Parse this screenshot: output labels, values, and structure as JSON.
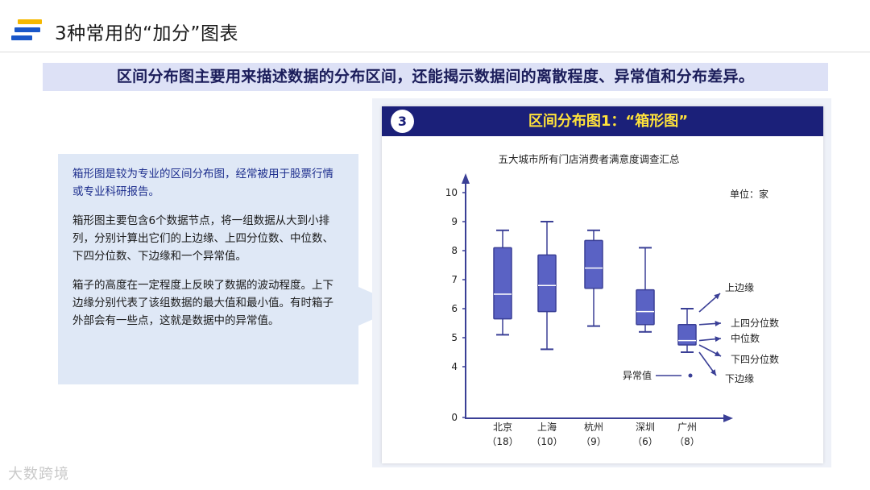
{
  "header": {
    "title": "3种常用的“加分”图表",
    "logo_colors": [
      "#f5b800",
      "#1a57c9",
      "#1a57c9"
    ]
  },
  "banner": {
    "text": "区间分布图主要用来描述数据的分布区间，还能揭示数据间的离散程度、异常值和分布差异。"
  },
  "description": {
    "paragraphs": [
      "箱形图是较为专业的区间分布图，经常被用于股票行情或专业科研报告。",
      "箱形图主要包含6个数据节点，将一组数据从大到小排列，分别计算出它们的上边缘、上四分位数、中位数、下四分位数、下边缘和一个异常值。",
      "箱子的高度在一定程度上反映了数据的波动程度。上下边缘分别代表了该组数据的最大值和最小值。有时箱子外部会有一些点，这就是数据中的异常值。"
    ]
  },
  "card": {
    "number": "3",
    "headline": "区间分布图1：“箱形图”"
  },
  "chart_data": {
    "type": "box",
    "title": "五大城市所有门店消费者满意度调查汇总",
    "unit_label": "单位：家",
    "y_ticks": [
      0,
      4,
      5,
      6,
      7,
      8,
      9,
      10
    ],
    "categories": [
      "北京",
      "上海",
      "杭州",
      "深圳",
      "广州"
    ],
    "counts": [
      "（18）",
      "（10）",
      "（9）",
      "（6）",
      "（8）"
    ],
    "boxes": [
      {
        "name": "北京",
        "min": 5.1,
        "q1": 5.65,
        "median": 6.5,
        "q3": 8.1,
        "max": 8.7
      },
      {
        "name": "上海",
        "min": 4.6,
        "q1": 5.9,
        "median": 6.8,
        "q3": 7.85,
        "max": 9.0
      },
      {
        "name": "杭州",
        "min": 5.4,
        "q1": 6.7,
        "median": 7.4,
        "q3": 8.35,
        "max": 8.7
      },
      {
        "name": "深圳",
        "min": 5.2,
        "q1": 5.45,
        "median": 5.9,
        "q3": 6.65,
        "max": 8.1
      },
      {
        "name": "广州",
        "min": 4.5,
        "q1": 4.75,
        "median": 4.9,
        "q3": 5.45,
        "max": 6.0,
        "outlier": 3.3
      }
    ],
    "annotations": [
      "上边缘",
      "上四分位数",
      "中位数",
      "下四分位数",
      "下边缘"
    ],
    "outlier_label": "异常值",
    "color": "#3a3f96",
    "fill": "#5a62c4"
  },
  "watermark": "大数跨境"
}
